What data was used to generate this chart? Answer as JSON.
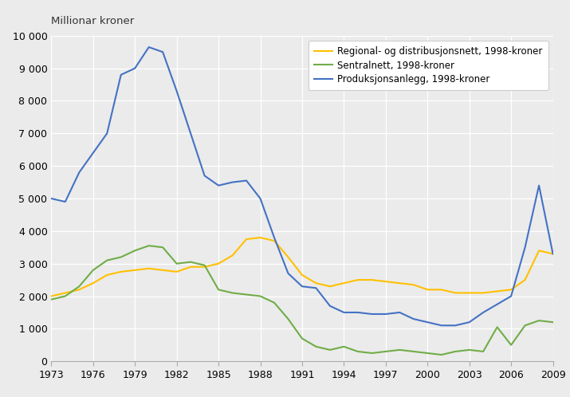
{
  "years": [
    1973,
    1974,
    1975,
    1976,
    1977,
    1978,
    1979,
    1980,
    1981,
    1982,
    1983,
    1984,
    1985,
    1986,
    1987,
    1988,
    1989,
    1990,
    1991,
    1992,
    1993,
    1994,
    1995,
    1996,
    1997,
    1998,
    1999,
    2000,
    2001,
    2002,
    2003,
    2004,
    2005,
    2006,
    2007,
    2008,
    2009
  ],
  "regional": [
    2000,
    2100,
    2200,
    2400,
    2650,
    2750,
    2800,
    2850,
    2800,
    2750,
    2900,
    2900,
    3000,
    3250,
    3750,
    3800,
    3700,
    3200,
    2650,
    2400,
    2300,
    2400,
    2500,
    2500,
    2450,
    2400,
    2350,
    2200,
    2200,
    2100,
    2100,
    2100,
    2150,
    2200,
    2500,
    3400,
    3300
  ],
  "sentralnett": [
    1900,
    2000,
    2300,
    2800,
    3100,
    3200,
    3400,
    3550,
    3500,
    3000,
    3050,
    2950,
    2200,
    2100,
    2050,
    2000,
    1800,
    1300,
    700,
    450,
    350,
    450,
    300,
    250,
    300,
    350,
    300,
    250,
    200,
    300,
    350,
    300,
    1050,
    500,
    1100,
    1250,
    1200
  ],
  "produksjon": [
    5000,
    4900,
    5800,
    6400,
    7000,
    8800,
    9000,
    9650,
    9500,
    8300,
    7000,
    5700,
    5400,
    5500,
    5550,
    5000,
    3800,
    2700,
    2300,
    2250,
    1700,
    1500,
    1500,
    1450,
    1450,
    1500,
    1300,
    1200,
    1100,
    1100,
    1200,
    1500,
    1750,
    2000,
    3500,
    5400,
    3300
  ],
  "ylabel": "Millionar kroner",
  "ylim": [
    0,
    10000
  ],
  "yticks": [
    0,
    1000,
    2000,
    3000,
    4000,
    5000,
    6000,
    7000,
    8000,
    9000,
    10000
  ],
  "xticks": [
    1973,
    1976,
    1979,
    1982,
    1985,
    1988,
    1991,
    1994,
    1997,
    2000,
    2003,
    2006,
    2009
  ],
  "color_regional": "#FFC000",
  "color_sentralnett": "#70AD47",
  "color_produksjon": "#4472C4",
  "legend_regional": "Regional- og distribusjonsnett, 1998-kroner",
  "legend_sentralnett": "Sentralnett, 1998-kroner",
  "legend_produksjon": "Produksjonsanlegg, 1998-kroner",
  "bg_color": "#EBEBEB",
  "grid_color": "#FFFFFF",
  "line_width": 1.5
}
